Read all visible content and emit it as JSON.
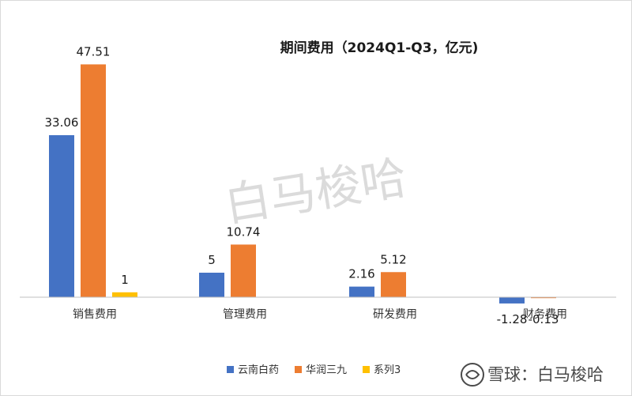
{
  "chart_data": {
    "type": "bar",
    "title": "期间费用（2024Q1-Q3，亿元)",
    "categories": [
      "销售费用",
      "管理费用",
      "研发费用",
      "财务费用"
    ],
    "series": [
      {
        "name": "云南白药",
        "values": [
          33.06,
          5,
          2.16,
          -1.28
        ],
        "labels": [
          "33.06",
          "5",
          "2.16",
          "-1.28"
        ],
        "color": "#4472C4"
      },
      {
        "name": "华润三九",
        "values": [
          47.51,
          10.74,
          5.12,
          -0.13
        ],
        "labels": [
          "47.51",
          "10.74",
          "5.12",
          "-0.13"
        ],
        "color": "#ED7D31"
      },
      {
        "name": "系列3",
        "values": [
          1,
          null,
          null,
          null
        ],
        "labels": [
          "1",
          "",
          "",
          ""
        ],
        "color": "#FFC000"
      }
    ],
    "ylim": [
      -3,
      50
    ],
    "grid": false,
    "legend": "bottom"
  },
  "watermark": {
    "text": "白马梭哈",
    "footer": "雪球：白马梭哈"
  }
}
